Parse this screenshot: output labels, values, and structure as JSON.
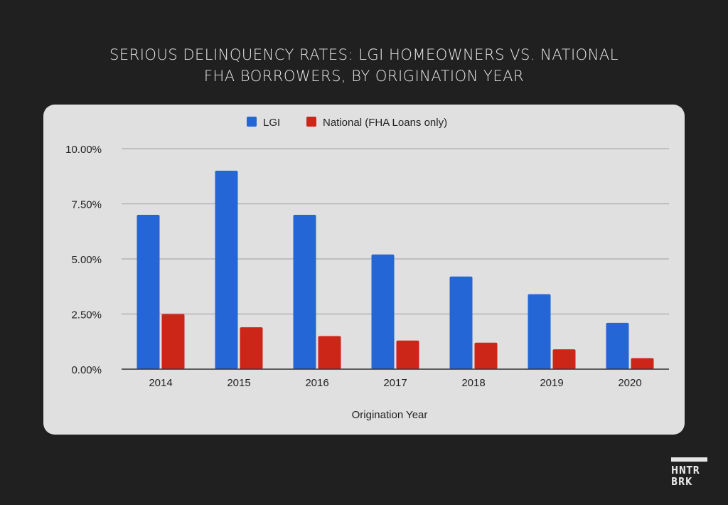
{
  "header": {
    "title_line1": "SERIOUS DELINQUENCY RATES: LGI HOMEOWNERS VS. NATIONAL",
    "title_line2": "FHA BORROWERS, BY ORIGINATION YEAR"
  },
  "logo": {
    "line1": "HNTR",
    "line2": "BRK"
  },
  "chart_data": {
    "type": "bar",
    "title": "SERIOUS DELINQUENCY RATES: LGI HOMEOWNERS VS. NATIONAL FHA BORROWERS, BY ORIGINATION YEAR",
    "xlabel": "Origination Year",
    "ylabel": "",
    "categories": [
      "2014",
      "2015",
      "2016",
      "2017",
      "2018",
      "2019",
      "2020"
    ],
    "series": [
      {
        "name": "LGI",
        "color": "#2466d6",
        "values": [
          7.0,
          9.0,
          7.0,
          5.2,
          4.2,
          3.4,
          2.1
        ]
      },
      {
        "name": "National (FHA Loans only)",
        "color": "#cc2619",
        "values": [
          2.5,
          1.9,
          1.5,
          1.3,
          1.2,
          0.9,
          0.5
        ]
      }
    ],
    "ylim": [
      0,
      10
    ],
    "yticks": [
      0,
      2.5,
      5,
      7.5,
      10
    ],
    "ytick_labels": [
      "0.00%",
      "2.50%",
      "5.00%",
      "7.50%",
      "10.00%"
    ],
    "grid": true,
    "legend": "top-center"
  }
}
